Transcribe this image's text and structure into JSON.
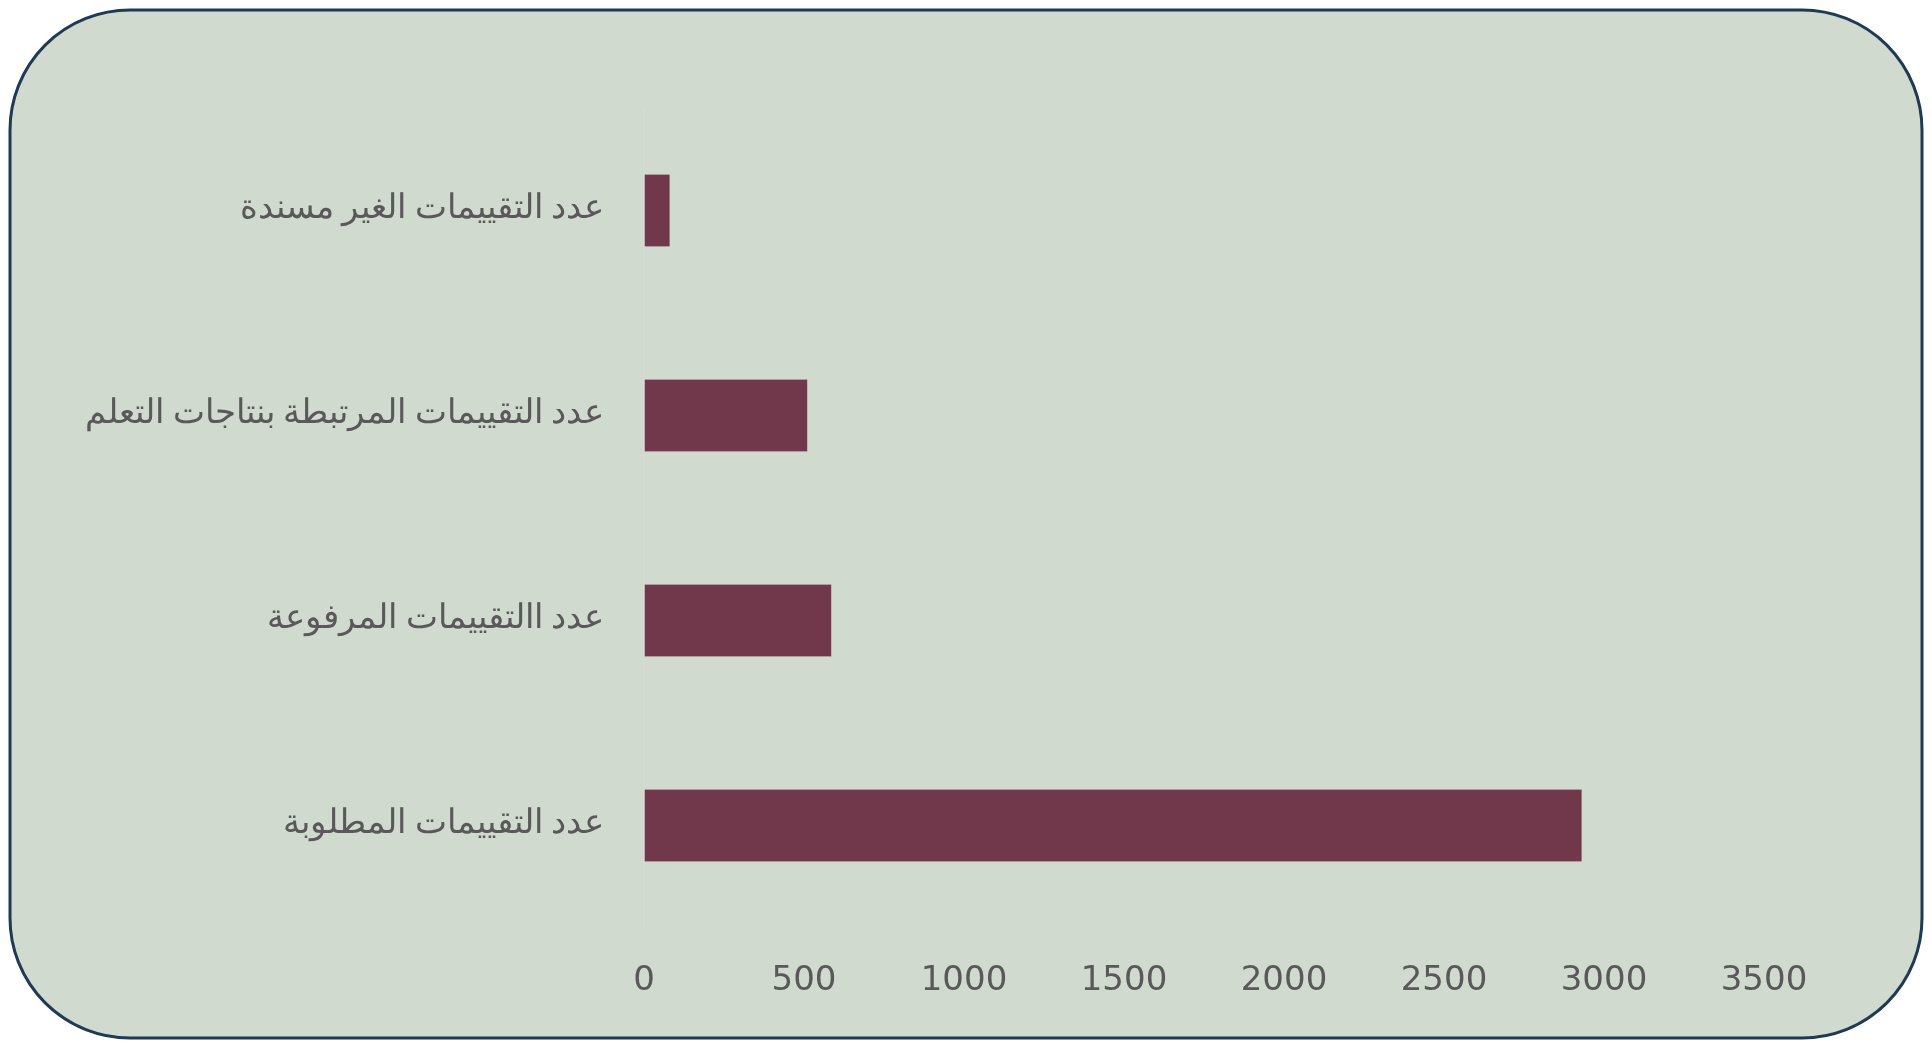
{
  "chart_data": {
    "type": "bar",
    "orientation": "horizontal",
    "categories": [
      "عدد التقييمات الغير مسندة",
      "عدد التقييمات المرتبطة بنتاجات التعلم",
      "عدد االتقييمات المرفوعة",
      "عدد التقييمات المطلوبة"
    ],
    "values": [
      80,
      510,
      585,
      2930
    ],
    "color": "#71374a",
    "xlim": [
      0,
      3500
    ],
    "xticks": [
      0,
      500,
      1000,
      1500,
      2000,
      2500,
      3000,
      3500
    ],
    "grid": false
  }
}
